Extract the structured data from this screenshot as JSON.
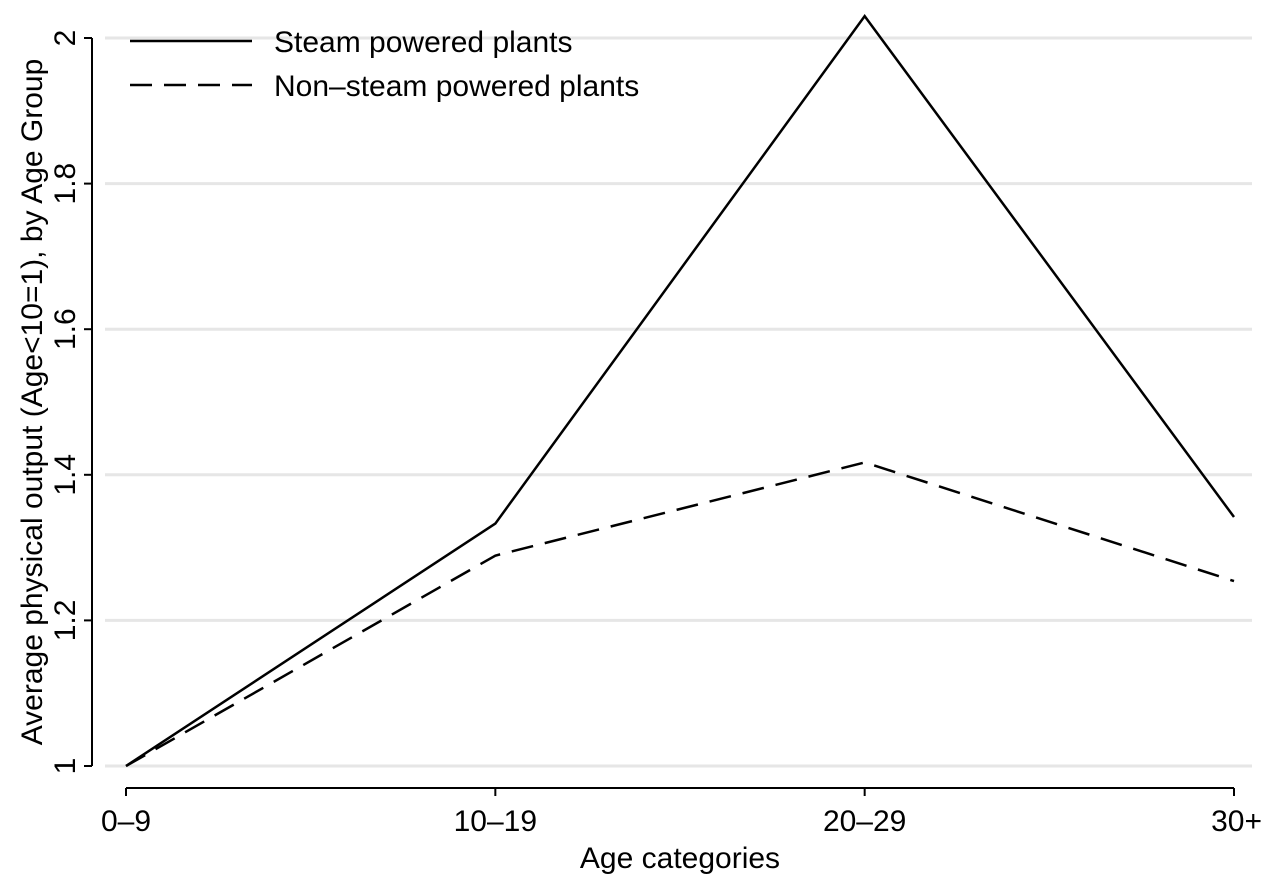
{
  "chart_data": {
    "type": "line",
    "title": "",
    "xlabel": "Age categories",
    "ylabel": "Average physical output (Age<10=1), by Age Group",
    "categories": [
      "0–9",
      "10–19",
      "20–29",
      "30+"
    ],
    "ylim": [
      1,
      2
    ],
    "yticks": [
      1,
      1.2,
      1.4,
      1.6,
      1.8,
      2
    ],
    "ytick_labels": [
      "1",
      "1.2",
      "1.4",
      "1.6",
      "1.8",
      "2"
    ],
    "grid": true,
    "legend_position": "top-left",
    "series": [
      {
        "name": "Steam powered plants",
        "style": "solid",
        "color": "#000000",
        "values": [
          1.0,
          1.333,
          2.03,
          1.342
        ]
      },
      {
        "name": "Non–steam powered plants",
        "style": "dashed",
        "color": "#000000",
        "values": [
          1.0,
          1.289,
          1.417,
          1.254
        ]
      }
    ]
  }
}
